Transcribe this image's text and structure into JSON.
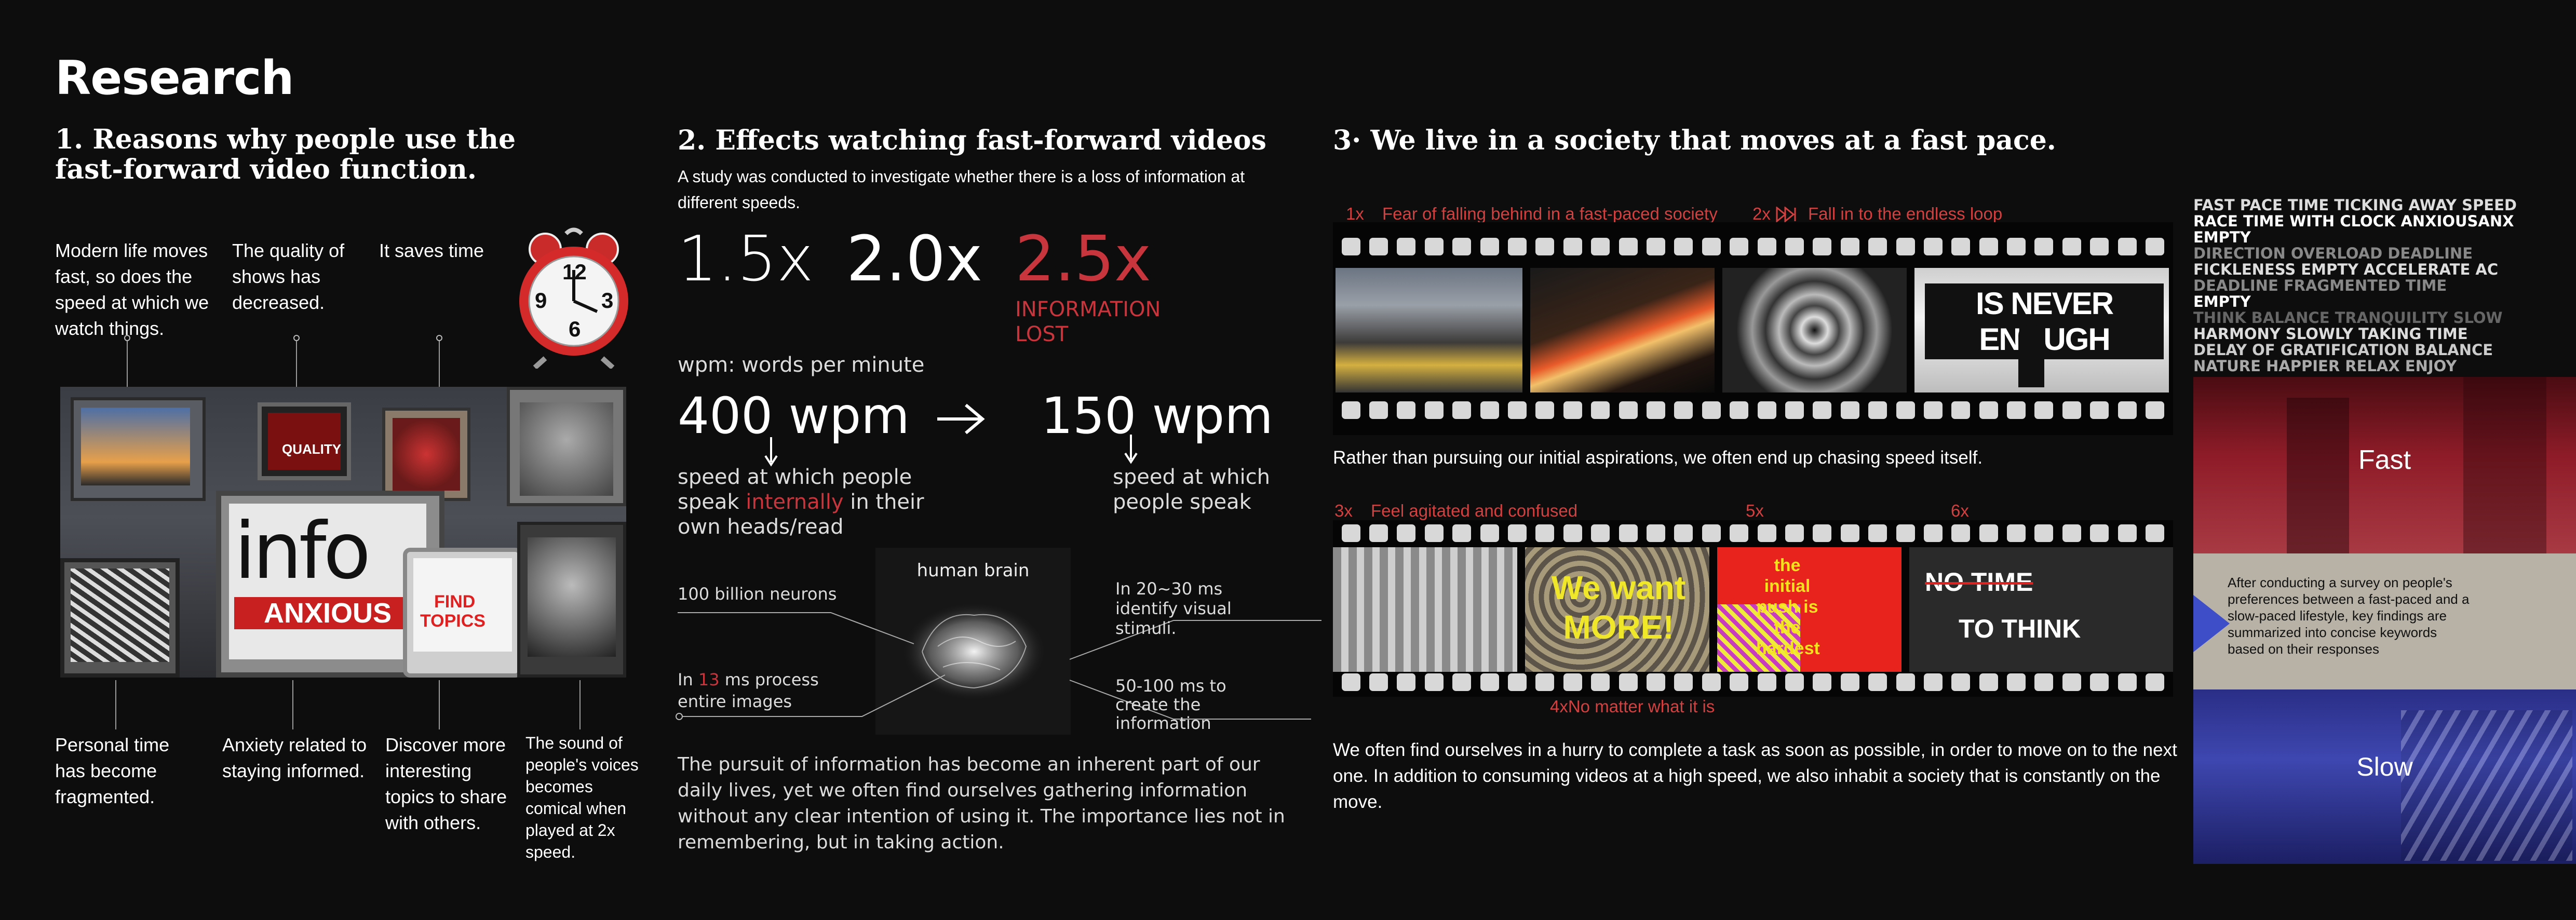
{
  "title": "Research",
  "section1": {
    "heading": "1. Reasons why people use the fast-forward video function.",
    "label_modern": "Modern life moves fast, so does the speed at which we watch things.",
    "label_quality": "The quality of shows has decreased.",
    "label_time": "It saves time",
    "label_personal": "Personal time has become fragmented.",
    "label_anxiety": "Anxiety related to staying informed.",
    "label_discover": "Discover more interesting topics to share with others.",
    "label_sound": "The sound of people's voices becomes comical when played at 2x speed.",
    "clock_numbers": [
      "12",
      "9",
      "3",
      "6"
    ],
    "tv_quality": "QUALITY",
    "tv_info": "info",
    "tv_anxious": "ANXIOUS",
    "tv_find": "FIND",
    "tv_topics": "TOPICS"
  },
  "section2": {
    "heading": "2. Effects watching fast-forward videos",
    "intro": "A study was conducted to investigate whether there is a loss of information at different speeds.",
    "speed1": "1.5x",
    "speed2": "2.0x",
    "speed3": "2.5x",
    "info_lost": "INFORMATION LOST",
    "wpm_def": "wpm: words per minute",
    "wpm_400": "400 wpm",
    "wpm_150": "150 wpm",
    "speak_internal_a": "speed at which people speak ",
    "speak_internal_red": "internally",
    "speak_internal_b": " in their own heads/read",
    "speak_out": "speed at which people speak",
    "brain_title": "human brain",
    "neurons": "100 billion neurons",
    "identify": "In 20~30 ms identify visual stimuli.",
    "process_a": "In ",
    "process_red": "13",
    "process_b": " ms process entire images",
    "create": "50-100 ms to create the information",
    "paragraph": "The pursuit of information has become an inherent part of our daily lives, yet we often find ourselves gathering information without any clear intention of using it. The importance lies not in remembering, but in taking action."
  },
  "section3": {
    "heading": "3· We live in a society that moves at a fast pace.",
    "cap1_num": "1x",
    "cap1_text": "Fear of falling behind in a fast-paced society",
    "cap2_num": "2x",
    "cap2_text": "Fall in to the endless loop",
    "never_enough": "IS NEVER ENOUGH",
    "middle_text": "Rather than pursuing our initial aspirations, we often end up chasing speed itself.",
    "cap3_num": "3x",
    "cap3_text": "Feel agitated and confused",
    "cap5_num": "5x",
    "cap6_num": "6x",
    "we_want": "We want MORE!",
    "initial_push": "the initial push is the hardest",
    "no_time": "NO TIME",
    "to_think": "TO THINK",
    "cap4": "4xNo matter what it is",
    "bottom_text": "We often find ourselves in a hurry to complete a task as soon as possible, in order to move on to the next one. In addition to consuming videos at a high speed, we also inhabit a society that is constantly on the move."
  },
  "panel": {
    "words": [
      "FAST PACE  TIME TICKING AWAY  SPEED",
      "RACE  TIME WITH CLOCK  ANXIOUSANX",
      "EMPTY",
      "DIRECTION  OVERLOAD  DEADLINE",
      "FICKLENESS  EMPTY ACCELERATE  AC",
      "DEADLINE  FRAGMENTED TIME",
      "EMPTY",
      "THINK BALANCE  TRANQUILITY SLOW",
      "HARMONY  SLOWLY  TAKING TIME",
      "DELAY  OF GRATIFICATION BALANCE",
      "NATURE  HAPPIER RELAX  ENJOY"
    ],
    "fast": "Fast",
    "survey": "After conducting a survey on people's preferences between a fast-paced and a slow-paced lifestyle, key findings are summarized into concise keywords based on their responses",
    "slow": "Slow"
  }
}
